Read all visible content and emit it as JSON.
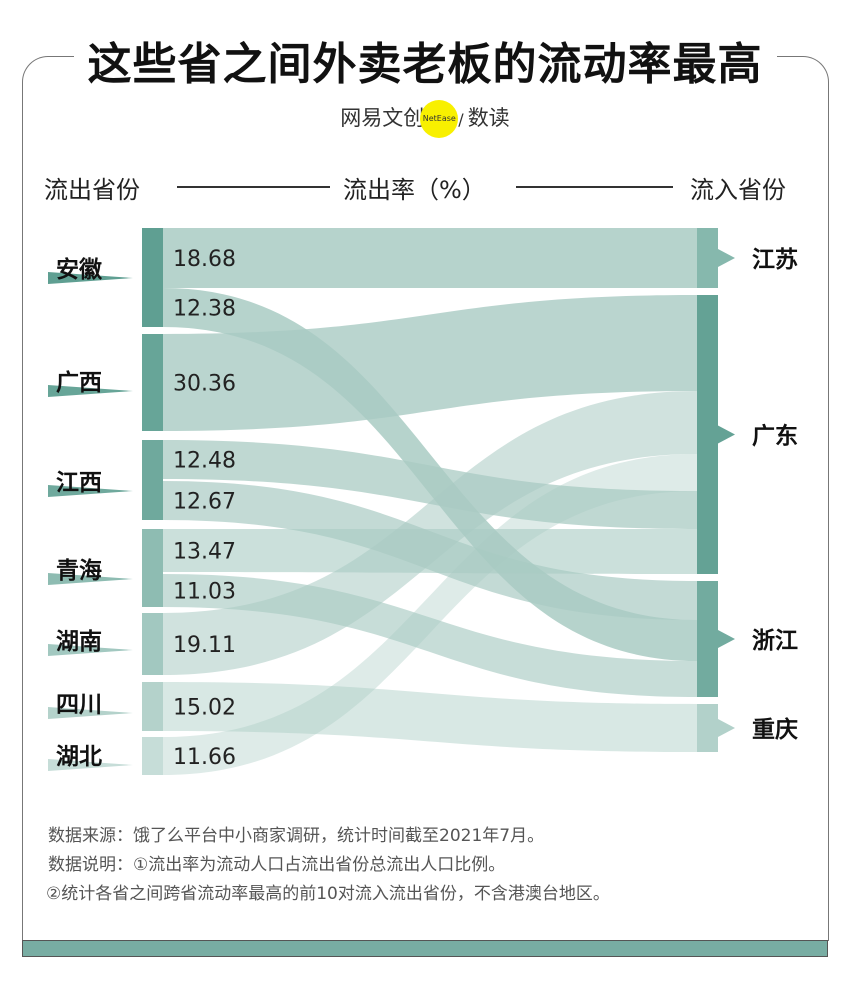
{
  "title": "这些省之间外卖老板的流动率最高",
  "logo": {
    "left": "网易文创",
    "badge": "NetEase",
    "slash": "/",
    "right": "数读"
  },
  "headers": {
    "source": "流出省份",
    "middle": "流出率（%）",
    "target": "流入省份"
  },
  "chart_data": {
    "type": "sankey",
    "unit": "%",
    "sources": [
      "安徽",
      "广西",
      "江西",
      "青海",
      "湖南",
      "四川",
      "湖北"
    ],
    "targets": [
      "江苏",
      "广东",
      "浙江",
      "重庆"
    ],
    "flows": [
      {
        "source": "安徽",
        "target": "江苏",
        "value": 18.68,
        "label": "18.68"
      },
      {
        "source": "安徽",
        "target": "浙江",
        "value": 12.38,
        "label": "12.38"
      },
      {
        "source": "广西",
        "target": "广东",
        "value": 30.36,
        "label": "30.36"
      },
      {
        "source": "江西",
        "target": "广东",
        "value": 12.48,
        "label": "12.48"
      },
      {
        "source": "江西",
        "target": "浙江",
        "value": 12.67,
        "label": "12.67"
      },
      {
        "source": "青海",
        "target": "广东",
        "value": 13.47,
        "label": "13.47"
      },
      {
        "source": "青海",
        "target": "浙江",
        "value": 11.03,
        "label": "11.03"
      },
      {
        "source": "湖南",
        "target": "广东",
        "value": 19.11,
        "label": "19.11"
      },
      {
        "source": "四川",
        "target": "重庆",
        "value": 15.02,
        "label": "15.02"
      },
      {
        "source": "湖北",
        "target": "广东",
        "value": 11.66,
        "label": "11.66"
      }
    ],
    "colors": {
      "node_dark": "#5f9f92",
      "flow": "#a9cbc3",
      "text": "#222222"
    }
  },
  "notes": {
    "source": "数据来源：饿了么平台中小商家调研，统计时间截至2021年7月。",
    "desc1": "数据说明：①流出率为流动人口占流出省份总流出人口比例。",
    "desc2": "②统计各省之间跨省流动率最高的前10对流入流出省份，不含港澳台地区。"
  }
}
